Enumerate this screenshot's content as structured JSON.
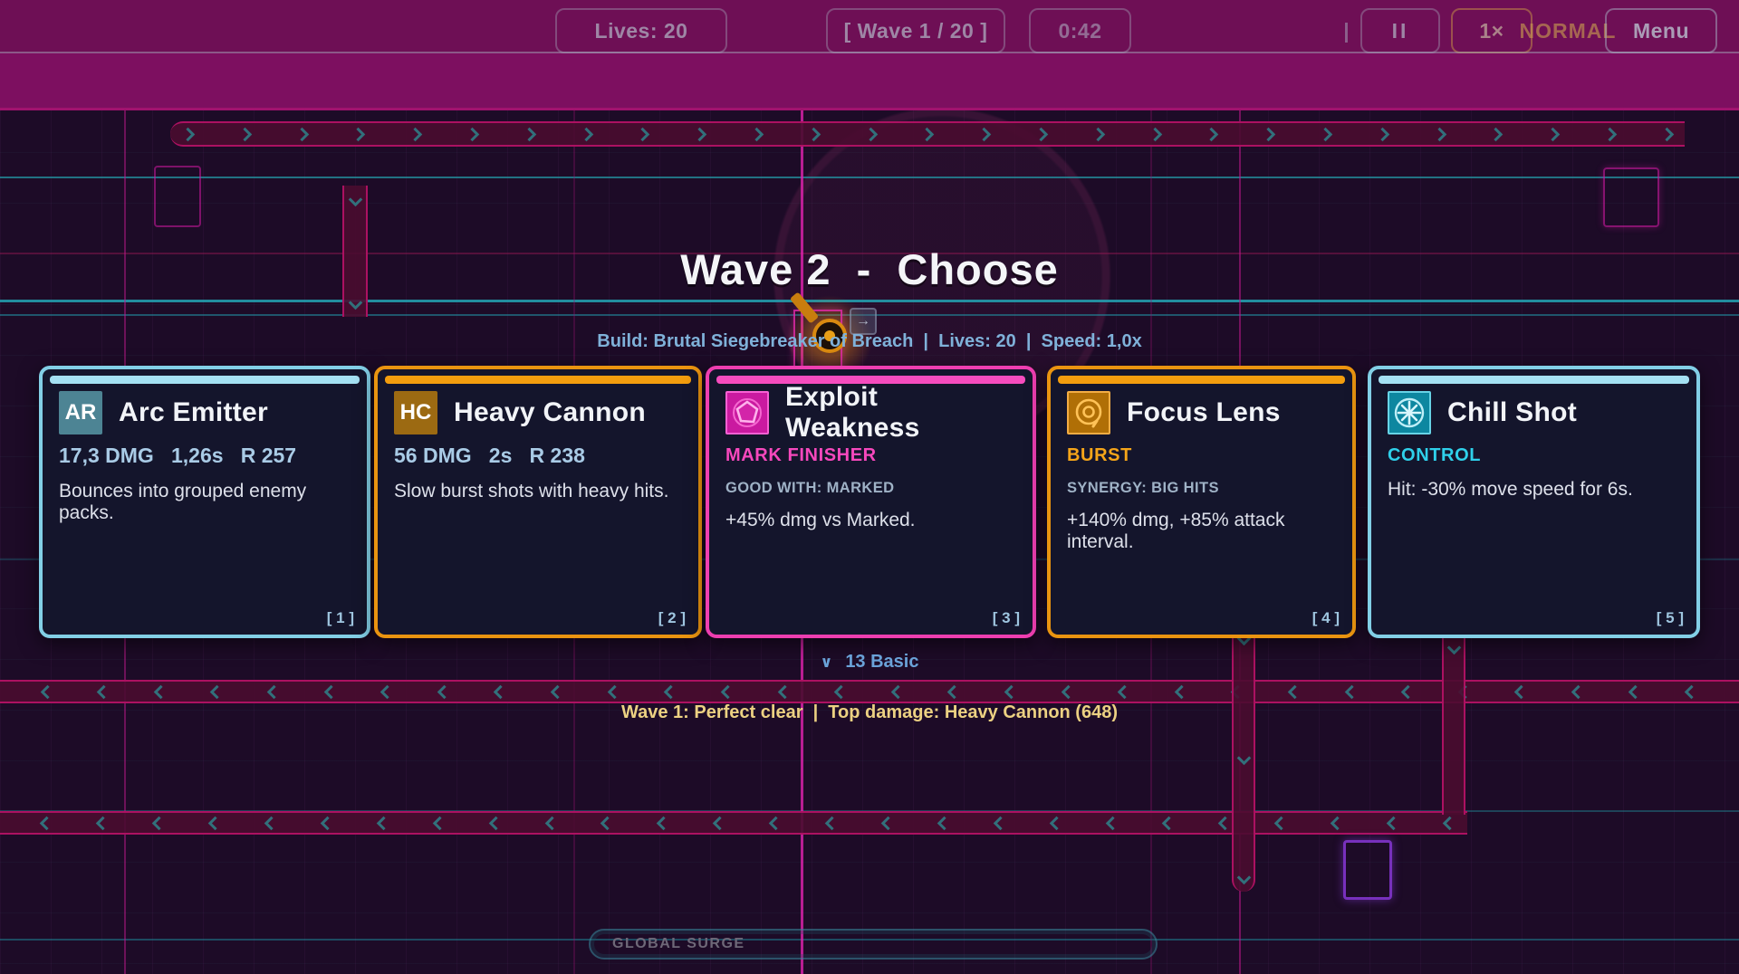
{
  "colors": {
    "cyan_accent": "#82cfe6",
    "orange_accent": "#ea9410",
    "magenta_accent": "#ee3eb0",
    "stats_blue": "#a9cbe6",
    "subtitle_blue": "#7fb1d9",
    "summary_gold": "#ecd182",
    "topbar_magenta": "#7d0f60"
  },
  "topbar": {
    "lives_label": "Lives: 20",
    "wave_label": "[ Wave 1 / 20 ]",
    "timer_label": "0:42",
    "divider": "|",
    "pause_label": "II",
    "speed_label": "1×",
    "difficulty_label": "NORMAL",
    "menu_label": "Menu"
  },
  "choose_overlay": {
    "title": "Wave 2  -  Choose",
    "build_line": "Build: Brutal Siegebreaker of Breach  |  Lives: 20  |  Speed: 1,0x",
    "cards": [
      {
        "badge": "AR",
        "title": "Arc Emitter",
        "stats": "17,3 DMG   1,26s   R 257",
        "desc": "Bounces into grouped enemy packs.",
        "hotkey": "[ 1 ]",
        "theme": "cyan"
      },
      {
        "badge": "HC",
        "title": "Heavy Cannon",
        "stats": "56 DMG   2s   R 238",
        "desc": "Slow burst shots with heavy hits.",
        "hotkey": "[ 2 ]",
        "theme": "orange"
      },
      {
        "icon": "pentagon-icon",
        "title": "Exploit Weakness",
        "tag": "MARK FINISHER",
        "synergy": "GOOD WITH: MARKED",
        "desc": "+45% dmg vs Marked.",
        "hotkey": "[ 3 ]",
        "theme": "magenta"
      },
      {
        "icon": "lens-icon",
        "title": "Focus Lens",
        "tag": "BURST",
        "synergy": "SYNERGY: BIG HITS",
        "desc": "+140% dmg, +85% attack interval.",
        "hotkey": "[ 4 ]",
        "theme": "orange"
      },
      {
        "icon": "snowflake-icon",
        "title": "Chill Shot",
        "tag": "CONTROL",
        "desc": "Hit: -30% move speed for 6s.",
        "hotkey": "[ 5 ]",
        "theme": "cyan"
      }
    ],
    "more_toggle": {
      "chevron": "∨",
      "label": "13 Basic"
    },
    "last_wave_summary": "Wave 1: Perfect clear  |  Top damage: Heavy Cannon (648)"
  },
  "bottombar": {
    "surge_label": "GLOBAL SURGE"
  },
  "map_decor": {
    "tower_arrow": "→"
  }
}
